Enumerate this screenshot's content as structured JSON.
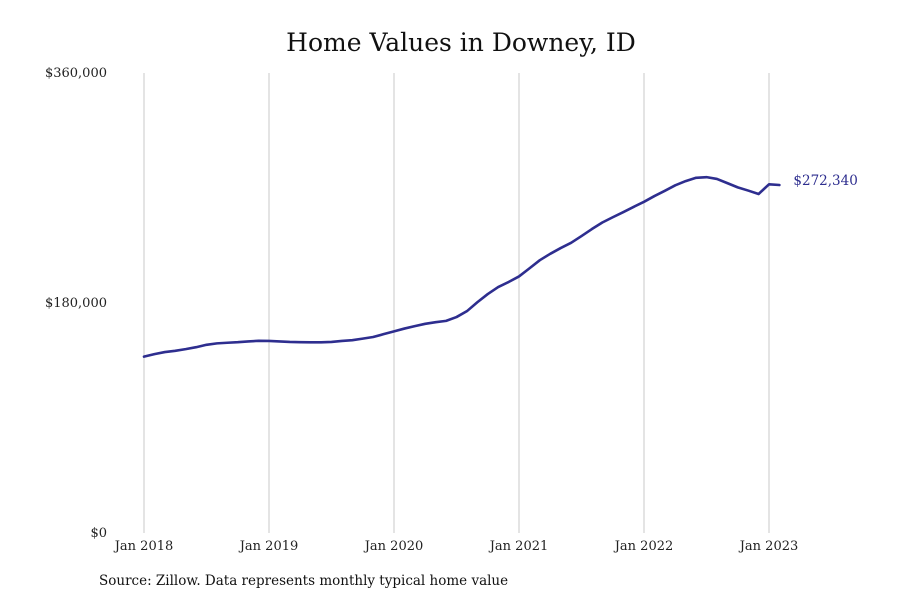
{
  "chart_data": {
    "type": "line",
    "title": "Home Values in Downey, ID",
    "xlabel": "",
    "ylabel": "",
    "source": "Source: Zillow. Data represents monthly typical home value",
    "ylim": [
      0,
      360000
    ],
    "xlim": [
      "2018-01",
      "2023-02"
    ],
    "y_ticks": [
      {
        "value": 0,
        "label": "$0"
      },
      {
        "value": 180000,
        "label": "$180,000"
      },
      {
        "value": 360000,
        "label": "$360,000"
      }
    ],
    "x_ticks": [
      {
        "value": "2018-01",
        "label": "Jan 2018"
      },
      {
        "value": "2019-01",
        "label": "Jan 2019"
      },
      {
        "value": "2020-01",
        "label": "Jan 2020"
      },
      {
        "value": "2021-01",
        "label": "Jan 2021"
      },
      {
        "value": "2022-01",
        "label": "Jan 2022"
      },
      {
        "value": "2023-01",
        "label": "Jan 2023"
      }
    ],
    "grid": {
      "vertical": true,
      "horizontal": false
    },
    "line_color": "#2e2e8f",
    "grid_color": "#c8c8c8",
    "end_label": "$272,340",
    "series": [
      {
        "x": [
          "2018-01",
          "2018-02",
          "2018-03",
          "2018-04",
          "2018-05",
          "2018-06",
          "2018-07",
          "2018-08",
          "2018-09",
          "2018-10",
          "2018-11",
          "2018-12",
          "2019-01",
          "2019-02",
          "2019-03",
          "2019-04",
          "2019-05",
          "2019-06",
          "2019-07",
          "2019-08",
          "2019-09",
          "2019-10",
          "2019-11",
          "2019-12",
          "2020-01",
          "2020-02",
          "2020-03",
          "2020-04",
          "2020-05",
          "2020-06",
          "2020-07",
          "2020-08",
          "2020-09",
          "2020-10",
          "2020-11",
          "2020-12",
          "2021-01",
          "2021-02",
          "2021-03",
          "2021-04",
          "2021-05",
          "2021-06",
          "2021-07",
          "2021-08",
          "2021-09",
          "2021-10",
          "2021-11",
          "2021-12",
          "2022-01",
          "2022-02",
          "2022-03",
          "2022-04",
          "2022-05",
          "2022-06",
          "2022-07",
          "2022-08",
          "2022-09",
          "2022-10",
          "2022-11",
          "2022-12",
          "2023-01",
          "2023-02"
        ],
        "y": [
          138000,
          140000,
          141600,
          142600,
          143900,
          145400,
          147300,
          148400,
          148900,
          149300,
          149900,
          150400,
          150300,
          149900,
          149500,
          149300,
          149200,
          149200,
          149500,
          150300,
          150900,
          152100,
          153400,
          155600,
          157800,
          160000,
          161900,
          163700,
          165000,
          166000,
          169000,
          173600,
          180600,
          187000,
          192500,
          196400,
          200800,
          207100,
          213500,
          218500,
          223000,
          227100,
          232400,
          237900,
          243000,
          247100,
          251100,
          255200,
          259200,
          263700,
          267800,
          272100,
          275400,
          278000,
          278500,
          277100,
          273800,
          270500,
          268000,
          265300,
          272900,
          272340
        ]
      }
    ]
  }
}
